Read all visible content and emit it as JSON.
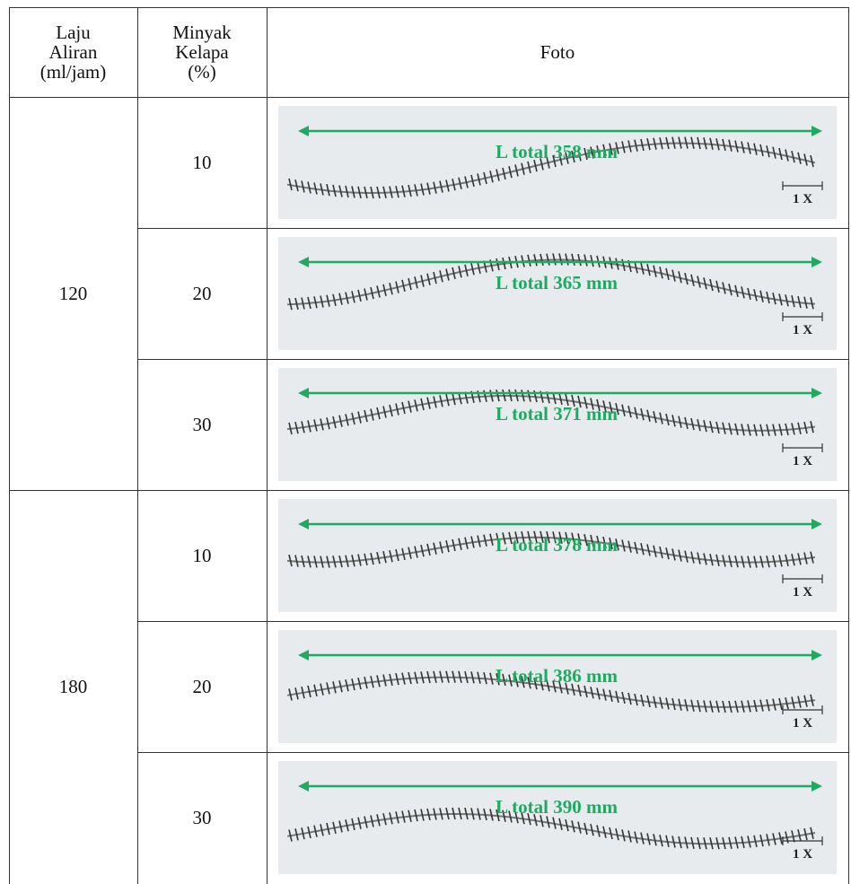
{
  "table": {
    "header": [
      [
        "Laju",
        "Aliran",
        "(ml/jam)"
      ],
      [
        "Minyak",
        "Kelapa",
        "(%)"
      ],
      "Foto"
    ],
    "groups": [
      {
        "flow": "120",
        "rows": [
          {
            "oil": "10",
            "photo": {
              "label": "L total 358 mm",
              "scale": "1 X"
            }
          },
          {
            "oil": "20",
            "photo": {
              "label": "L total 365 mm",
              "scale": "1 X"
            }
          },
          {
            "oil": "30",
            "photo": {
              "label": "L total 371 mm",
              "scale": "1 X"
            }
          }
        ]
      },
      {
        "flow": "180",
        "rows": [
          {
            "oil": "10",
            "photo": {
              "label": "L total 378 mm",
              "scale": "1 X"
            }
          },
          {
            "oil": "20",
            "photo": {
              "label": "L total 386 mm",
              "scale": "1 X"
            }
          },
          {
            "oil": "30",
            "photo": {
              "label": "L total 390 mm",
              "scale": "1 X"
            }
          }
        ]
      }
    ]
  }
}
